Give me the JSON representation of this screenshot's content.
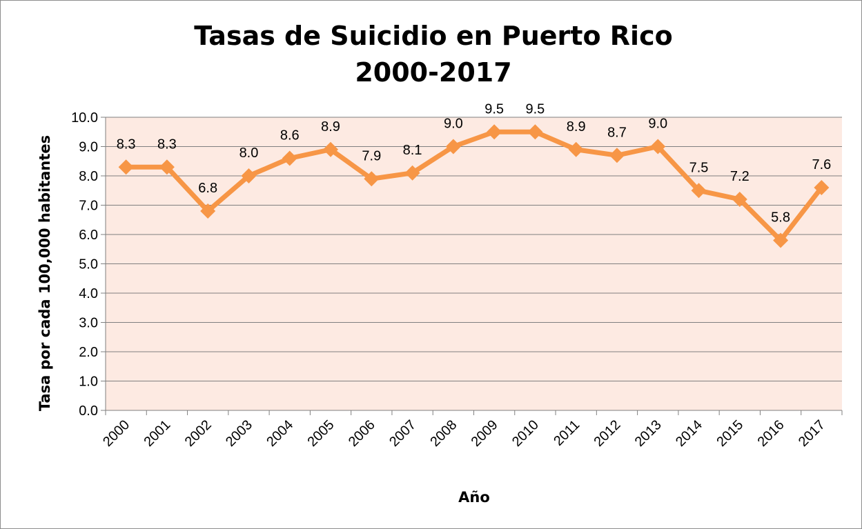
{
  "chart_data": {
    "type": "line",
    "title_lines": [
      "Tasas de Suicidio en Puerto Rico",
      "2000-2017"
    ],
    "xlabel": "Año",
    "ylabel": "Tasa por cada 100,000 habitantes",
    "categories": [
      "2000",
      "2001",
      "2002",
      "2003",
      "2004",
      "2005",
      "2006",
      "2007",
      "2008",
      "2009",
      "2010",
      "2011",
      "2012",
      "2013",
      "2014",
      "2015",
      "2016",
      "2017"
    ],
    "series": [
      {
        "values": [
          8.3,
          8.3,
          6.8,
          8.0,
          8.6,
          8.9,
          7.9,
          8.1,
          9.0,
          9.5,
          9.5,
          8.9,
          8.7,
          9.0,
          7.5,
          7.2,
          5.8,
          7.6
        ],
        "data_labels": [
          "8.3",
          "8.3",
          "6.8",
          "8.0",
          "8.6",
          "8.9",
          "7.9",
          "8.1",
          "9.0",
          "9.5",
          "9.5",
          "8.9",
          "8.7",
          "9.0",
          "7.5",
          "7.2",
          "5.8",
          "7.6"
        ],
        "color": "#f79646",
        "marker": "diamond"
      }
    ],
    "y_ticks": [
      "0.0",
      "1.0",
      "2.0",
      "3.0",
      "4.0",
      "5.0",
      "6.0",
      "7.0",
      "8.0",
      "9.0",
      "10.0"
    ],
    "ylim": [
      0,
      10
    ],
    "grid": true,
    "legend": "none",
    "plot_background": "#fdeae2",
    "gridline_color": "#7f7f7f"
  }
}
